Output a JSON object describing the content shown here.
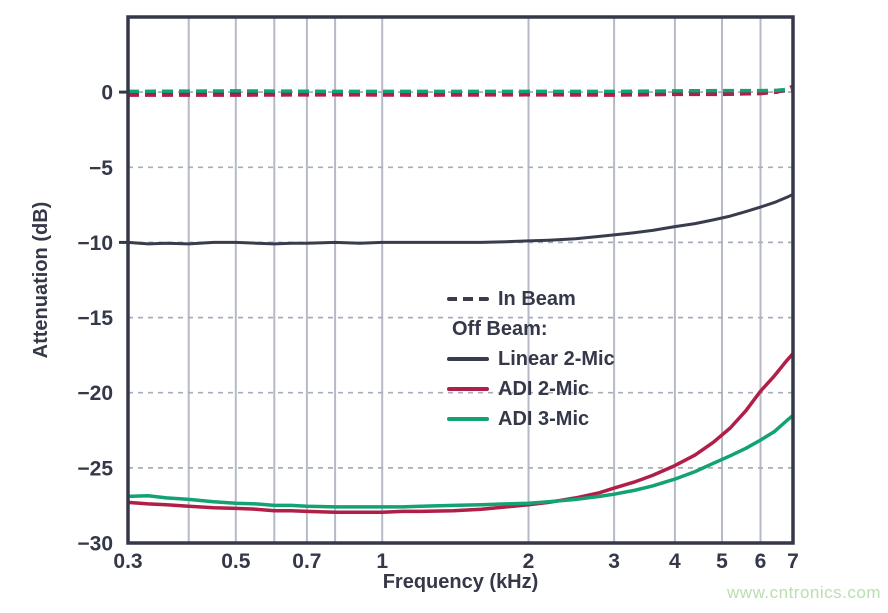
{
  "watermark": {
    "text": "www.cntronics.com",
    "color": "#b7e0ae"
  },
  "chart_data": {
    "type": "line",
    "title": "",
    "xlabel": "Frequency (kHz)",
    "ylabel": "Attenuation (dB)",
    "x_scale": "log",
    "xlim": [
      0.3,
      7
    ],
    "ylim": [
      -30,
      5
    ],
    "grid": true,
    "x_ticks": [
      {
        "value": 0.3,
        "label": "0.3"
      },
      {
        "value": 0.5,
        "label": "0.5"
      },
      {
        "value": 0.7,
        "label": "0.7"
      },
      {
        "value": 1,
        "label": "1"
      },
      {
        "value": 2,
        "label": "2"
      },
      {
        "value": 3,
        "label": "3"
      },
      {
        "value": 4,
        "label": "4"
      },
      {
        "value": 5,
        "label": "5"
      },
      {
        "value": 6,
        "label": "6"
      },
      {
        "value": 7,
        "label": "7"
      }
    ],
    "x_gridlines": [
      0.4,
      0.5,
      0.6,
      0.7,
      0.8,
      1,
      2,
      3,
      4,
      5,
      6
    ],
    "y_ticks": [
      {
        "value": 0,
        "label": "0",
        "tick": true
      },
      {
        "value": -5,
        "label": "−5",
        "tick": false
      },
      {
        "value": -10,
        "label": "−10",
        "tick": true
      },
      {
        "value": -15,
        "label": "−15",
        "tick": false
      },
      {
        "value": -20,
        "label": "−20",
        "tick": false
      },
      {
        "value": -25,
        "label": "−25",
        "tick": false
      },
      {
        "value": -30,
        "label": "−30",
        "tick": false
      }
    ],
    "y_gridlines_dashed": [
      0,
      -5,
      -10,
      -15,
      -20,
      -25
    ],
    "colors": {
      "axis": "#343848",
      "grid_vertical": "#b6bac6",
      "grid_dashed": "#a9aebc",
      "navy": "#383c4c",
      "red": "#b01f48",
      "green": "#12a273"
    },
    "legend": {
      "position": "inside-center",
      "items": [
        {
          "label": "In Beam",
          "swatch": "dashed",
          "color": "#383c4c"
        },
        {
          "label": "Off Beam:",
          "swatch": "none",
          "color": ""
        },
        {
          "label": "Linear 2-Mic",
          "swatch": "solid",
          "color": "#383c4c"
        },
        {
          "label": "ADI 2-Mic",
          "swatch": "solid",
          "color": "#b01f48"
        },
        {
          "label": "ADI 3-Mic",
          "swatch": "solid",
          "color": "#12a273"
        }
      ]
    },
    "series": [
      {
        "id": "in-beam-linear-2-mic",
        "name": "In Beam (Linear 2-Mic)",
        "color": "#383c4c",
        "width": 3.5,
        "dash": "11 6",
        "x": [
          0.3,
          0.5,
          0.8,
          1.2,
          2,
          3,
          4,
          5,
          5.5,
          6,
          6.5,
          6.8,
          7
        ],
        "y": [
          0,
          0,
          0,
          0,
          0,
          0,
          0,
          0,
          0,
          0.02,
          0.05,
          0.1,
          0.15
        ]
      },
      {
        "id": "in-beam-adi-2-mic",
        "name": "In Beam (ADI 2-Mic)",
        "color": "#b01f48",
        "width": 3.5,
        "dash": "11 6",
        "x": [
          0.3,
          0.5,
          0.8,
          1.2,
          2,
          3,
          4,
          5,
          5.5,
          6,
          6.5,
          6.8,
          7
        ],
        "y": [
          -0.2,
          -0.2,
          -0.18,
          -0.2,
          -0.18,
          -0.2,
          -0.15,
          -0.15,
          -0.12,
          -0.1,
          0,
          0.2,
          0.4
        ]
      },
      {
        "id": "in-beam-adi-3-mic",
        "name": "In Beam (ADI 3-Mic)",
        "color": "#12a273",
        "width": 3.5,
        "dash": "11 6",
        "x": [
          0.3,
          0.5,
          0.8,
          1.2,
          2,
          3,
          4,
          5,
          5.5,
          6,
          6.5,
          6.8,
          7
        ],
        "y": [
          0.05,
          0.08,
          0.05,
          0.05,
          0.05,
          0.05,
          0.08,
          0.1,
          0.1,
          0.1,
          0.12,
          0.18,
          0.25
        ]
      },
      {
        "id": "linear-2-mic",
        "name": "Off Beam Linear 2-Mic",
        "color": "#383c4c",
        "width": 3,
        "dash": null,
        "x": [
          0.3,
          0.33,
          0.36,
          0.4,
          0.45,
          0.5,
          0.55,
          0.6,
          0.65,
          0.7,
          0.8,
          0.9,
          1.0,
          1.1,
          1.2,
          1.4,
          1.6,
          1.8,
          2.0,
          2.2,
          2.5,
          2.8,
          3.0,
          3.3,
          3.6,
          4.0,
          4.4,
          4.8,
          5.2,
          5.6,
          6.0,
          6.4,
          6.8,
          7.0
        ],
        "y": [
          -10.0,
          -10.1,
          -10.05,
          -10.1,
          -10.0,
          -10.0,
          -10.05,
          -10.1,
          -10.05,
          -10.05,
          -10.0,
          -10.05,
          -10.0,
          -10.0,
          -10.0,
          -10.0,
          -10.0,
          -9.95,
          -9.9,
          -9.85,
          -9.75,
          -9.6,
          -9.5,
          -9.35,
          -9.2,
          -8.95,
          -8.75,
          -8.5,
          -8.25,
          -7.95,
          -7.65,
          -7.35,
          -7.0,
          -6.8
        ]
      },
      {
        "id": "adi-2-mic",
        "name": "Off Beam ADI 2-Mic",
        "color": "#b01f48",
        "width": 3.5,
        "dash": null,
        "x": [
          0.3,
          0.33,
          0.36,
          0.4,
          0.45,
          0.5,
          0.55,
          0.6,
          0.65,
          0.7,
          0.8,
          0.9,
          1.0,
          1.1,
          1.2,
          1.4,
          1.6,
          1.8,
          2.0,
          2.2,
          2.5,
          2.8,
          3.0,
          3.3,
          3.6,
          4.0,
          4.4,
          4.8,
          5.2,
          5.6,
          6.0,
          6.4,
          6.8,
          7.0
        ],
        "y": [
          -27.3,
          -27.4,
          -27.45,
          -27.55,
          -27.65,
          -27.7,
          -27.75,
          -27.85,
          -27.85,
          -27.9,
          -27.95,
          -27.95,
          -27.95,
          -27.9,
          -27.9,
          -27.85,
          -27.75,
          -27.6,
          -27.45,
          -27.3,
          -27.0,
          -26.65,
          -26.35,
          -25.95,
          -25.5,
          -24.85,
          -24.15,
          -23.3,
          -22.35,
          -21.2,
          -19.9,
          -18.9,
          -17.85,
          -17.4
        ]
      },
      {
        "id": "adi-3-mic",
        "name": "Off Beam ADI 3-Mic",
        "color": "#12a273",
        "width": 3.5,
        "dash": null,
        "x": [
          0.3,
          0.33,
          0.36,
          0.4,
          0.45,
          0.5,
          0.55,
          0.6,
          0.65,
          0.7,
          0.8,
          0.9,
          1.0,
          1.1,
          1.2,
          1.4,
          1.6,
          1.8,
          2.0,
          2.2,
          2.5,
          2.8,
          3.0,
          3.3,
          3.6,
          4.0,
          4.4,
          4.8,
          5.2,
          5.6,
          6.0,
          6.4,
          6.8,
          7.0
        ],
        "y": [
          -26.9,
          -26.85,
          -27.0,
          -27.1,
          -27.25,
          -27.35,
          -27.4,
          -27.5,
          -27.5,
          -27.55,
          -27.6,
          -27.6,
          -27.6,
          -27.6,
          -27.55,
          -27.5,
          -27.45,
          -27.4,
          -27.35,
          -27.25,
          -27.1,
          -26.9,
          -26.75,
          -26.5,
          -26.2,
          -25.75,
          -25.25,
          -24.7,
          -24.2,
          -23.7,
          -23.15,
          -22.6,
          -21.85,
          -21.5
        ]
      }
    ]
  }
}
